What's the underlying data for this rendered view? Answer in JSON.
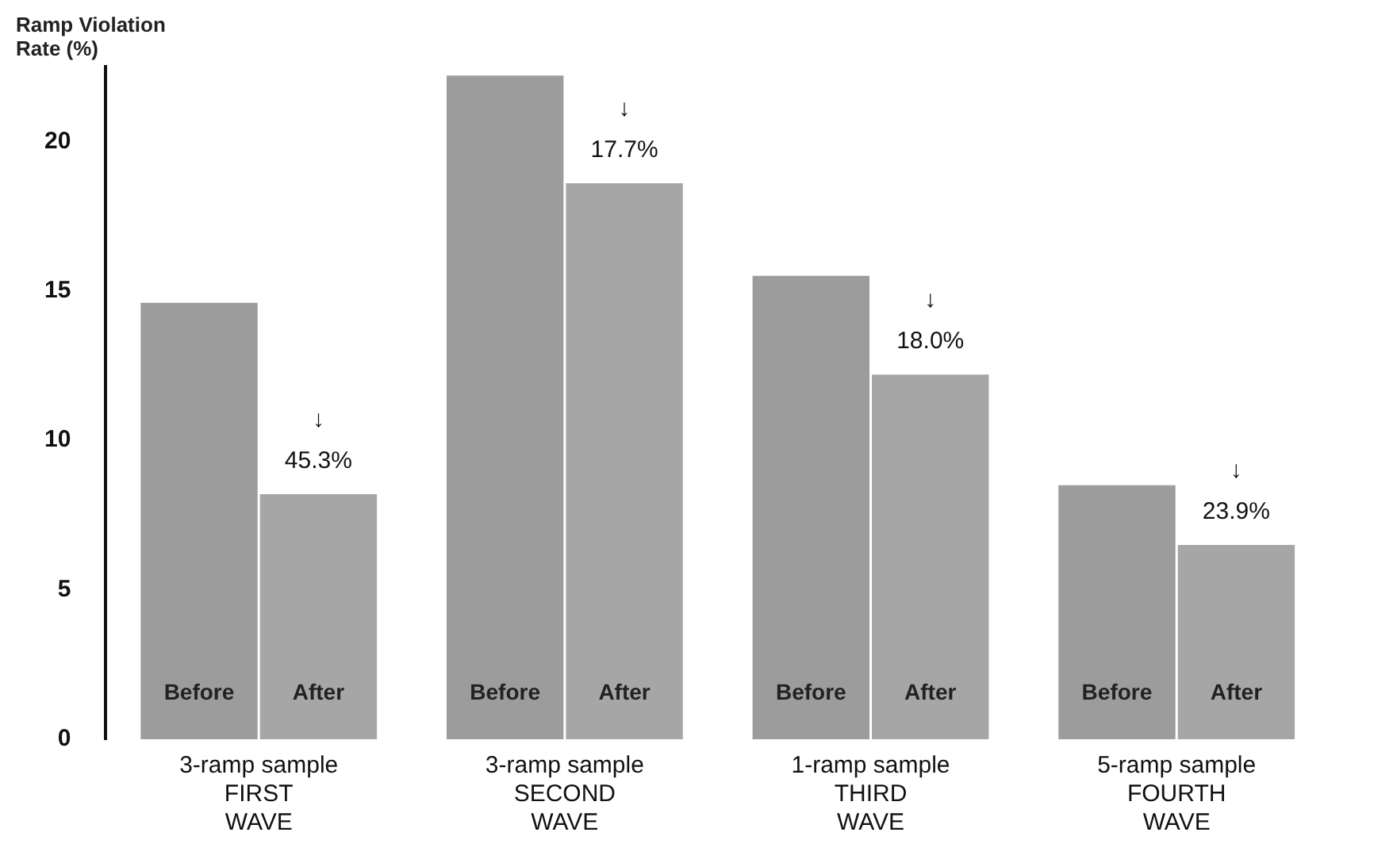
{
  "chart_data": {
    "type": "bar",
    "ylabel": "Ramp Violation\nRate (%)",
    "categories": [
      "3-ramp sample\nFIRST\nWAVE",
      "3-ramp sample\nSECOND\nWAVE",
      "1-ramp sample\nTHIRD\nWAVE",
      "5-ramp sample\nFOURTH\nWAVE"
    ],
    "series": [
      {
        "name": "Before",
        "color": "#9c9c9c",
        "values": [
          14.6,
          22.2,
          15.5,
          8.5
        ]
      },
      {
        "name": "After",
        "color": "#a6a6a6",
        "values": [
          8.2,
          18.6,
          12.2,
          6.5
        ]
      }
    ],
    "annotations": [
      {
        "text": "↓\n45.3%",
        "x": "3-ramp sample\nFIRST\nWAVE",
        "y": 8.9
      },
      {
        "text": "↓\n17.7%",
        "x": "3-ramp sample\nSECOND\nWAVE",
        "y": 19.3
      },
      {
        "text": "↓\n18.0%",
        "x": "1-ramp sample\nTHIRD\nWAVE",
        "y": 12.9
      },
      {
        "text": "↓\n23.9%",
        "x": "5-ramp sample\nFOURTH\nWAVE",
        "y": 7.2
      }
    ],
    "ylim": [
      0,
      22.5
    ],
    "yticks": [
      0,
      5,
      10,
      15,
      20
    ],
    "grid": false,
    "legend": false
  }
}
